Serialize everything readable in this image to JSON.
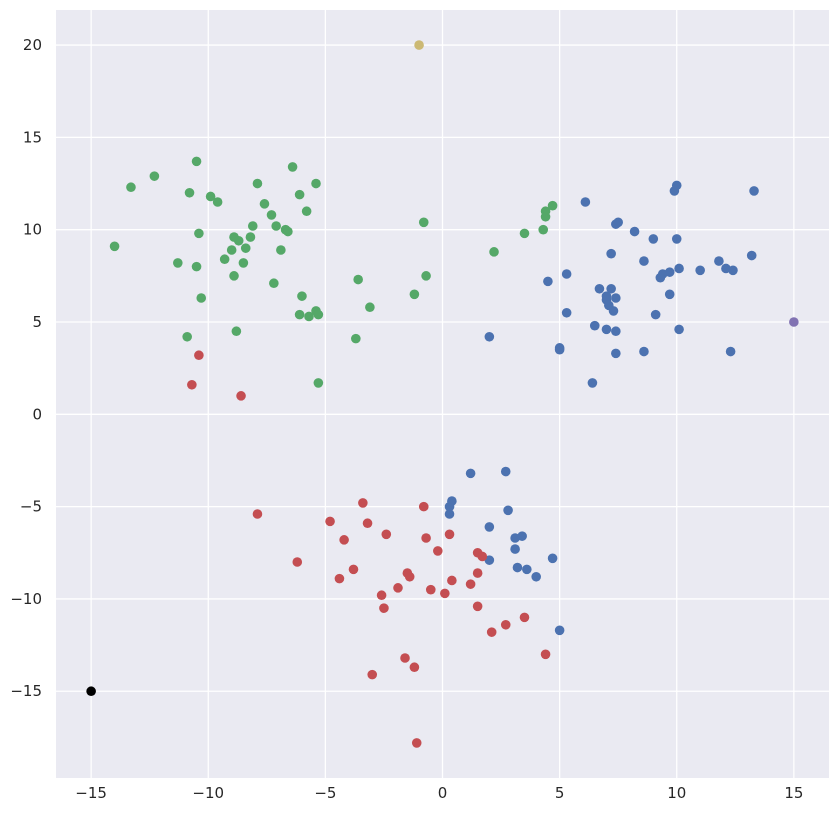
{
  "chart_data": {
    "type": "scatter",
    "title": "",
    "xlabel": "",
    "ylabel": "",
    "xlim": [
      -16.5,
      16.5
    ],
    "ylim": [
      -19.7,
      21.9
    ],
    "grid": true,
    "background_color": "#eaeaf2",
    "grid_color": "#ffffff",
    "x_ticks": [
      -15,
      -10,
      -5,
      0,
      5,
      10,
      15
    ],
    "x_tick_labels": [
      "−15",
      "−10",
      "−5",
      "0",
      "5",
      "10",
      "15"
    ],
    "y_ticks": [
      -15,
      -10,
      -5,
      0,
      5,
      10,
      15,
      20
    ],
    "y_tick_labels": [
      "−15",
      "−10",
      "−5",
      "0",
      "5",
      "10",
      "15",
      "20"
    ],
    "series": [
      {
        "color": "#55a868",
        "points": [
          [
            -14.0,
            9.1
          ],
          [
            -13.3,
            12.3
          ],
          [
            -12.3,
            12.9
          ],
          [
            -11.3,
            8.2
          ],
          [
            -10.9,
            4.2
          ],
          [
            -10.8,
            12.0
          ],
          [
            -10.5,
            13.7
          ],
          [
            -10.5,
            8.0
          ],
          [
            -10.4,
            9.8
          ],
          [
            -10.3,
            6.3
          ],
          [
            -9.9,
            11.8
          ],
          [
            -9.6,
            11.5
          ],
          [
            -9.3,
            8.4
          ],
          [
            -9.0,
            8.9
          ],
          [
            -8.9,
            9.6
          ],
          [
            -8.9,
            7.5
          ],
          [
            -8.8,
            4.5
          ],
          [
            -8.7,
            9.4
          ],
          [
            -8.5,
            8.2
          ],
          [
            -8.4,
            9.0
          ],
          [
            -8.2,
            9.6
          ],
          [
            -8.1,
            10.2
          ],
          [
            -7.9,
            12.5
          ],
          [
            -7.6,
            11.4
          ],
          [
            -7.3,
            10.8
          ],
          [
            -7.2,
            7.1
          ],
          [
            -7.1,
            10.2
          ],
          [
            -6.9,
            8.9
          ],
          [
            -6.7,
            10.0
          ],
          [
            -6.6,
            9.9
          ],
          [
            -6.4,
            13.4
          ],
          [
            -6.1,
            11.9
          ],
          [
            -6.1,
            5.4
          ],
          [
            -6.0,
            6.4
          ],
          [
            -5.8,
            11.0
          ],
          [
            -5.7,
            5.3
          ],
          [
            -5.4,
            5.6
          ],
          [
            -5.4,
            12.5
          ],
          [
            -5.3,
            5.4
          ],
          [
            -5.3,
            1.7
          ],
          [
            -3.7,
            4.1
          ],
          [
            -3.6,
            7.3
          ],
          [
            -3.1,
            5.8
          ],
          [
            -1.2,
            6.5
          ],
          [
            -0.8,
            10.4
          ],
          [
            -0.7,
            7.5
          ],
          [
            2.2,
            8.8
          ],
          [
            3.5,
            9.8
          ],
          [
            4.3,
            10.0
          ],
          [
            4.4,
            10.7
          ],
          [
            4.4,
            11.0
          ],
          [
            4.7,
            11.3
          ]
        ]
      },
      {
        "color": "#4c72b0",
        "points": [
          [
            2.0,
            4.2
          ],
          [
            4.5,
            7.2
          ],
          [
            5.0,
            3.6
          ],
          [
            5.0,
            3.5
          ],
          [
            5.3,
            7.6
          ],
          [
            5.3,
            5.5
          ],
          [
            6.1,
            11.5
          ],
          [
            6.4,
            1.7
          ],
          [
            6.5,
            4.8
          ],
          [
            6.7,
            6.8
          ],
          [
            7.0,
            6.2
          ],
          [
            7.0,
            6.4
          ],
          [
            7.0,
            4.6
          ],
          [
            7.1,
            5.9
          ],
          [
            7.2,
            6.8
          ],
          [
            7.2,
            8.7
          ],
          [
            7.3,
            5.6
          ],
          [
            7.4,
            10.3
          ],
          [
            7.4,
            6.3
          ],
          [
            7.4,
            3.3
          ],
          [
            7.4,
            4.5
          ],
          [
            7.5,
            10.4
          ],
          [
            8.2,
            9.9
          ],
          [
            8.6,
            8.3
          ],
          [
            8.6,
            3.4
          ],
          [
            9.0,
            9.5
          ],
          [
            9.1,
            5.4
          ],
          [
            9.3,
            7.4
          ],
          [
            9.4,
            7.6
          ],
          [
            9.7,
            6.5
          ],
          [
            9.7,
            7.7
          ],
          [
            9.9,
            12.1
          ],
          [
            10.0,
            12.4
          ],
          [
            10.0,
            9.5
          ],
          [
            10.1,
            7.9
          ],
          [
            10.1,
            4.6
          ],
          [
            11.0,
            7.8
          ],
          [
            11.8,
            8.3
          ],
          [
            12.1,
            7.9
          ],
          [
            12.3,
            3.4
          ],
          [
            12.4,
            7.8
          ],
          [
            13.2,
            8.6
          ],
          [
            13.3,
            12.1
          ],
          [
            1.2,
            -3.2
          ],
          [
            2.7,
            -3.1
          ],
          [
            0.4,
            -4.7
          ],
          [
            0.3,
            -5.0
          ],
          [
            0.3,
            -5.4
          ],
          [
            2.8,
            -5.2
          ],
          [
            2.0,
            -6.1
          ],
          [
            3.1,
            -6.7
          ],
          [
            3.4,
            -6.6
          ],
          [
            3.1,
            -7.3
          ],
          [
            2.0,
            -7.9
          ],
          [
            4.7,
            -7.8
          ],
          [
            3.2,
            -8.3
          ],
          [
            3.6,
            -8.4
          ],
          [
            4.0,
            -8.8
          ],
          [
            5.0,
            -11.7
          ]
        ]
      },
      {
        "color": "#c44e52",
        "points": [
          [
            -10.4,
            3.2
          ],
          [
            -10.7,
            1.6
          ],
          [
            -8.6,
            1.0
          ],
          [
            -7.9,
            -5.4
          ],
          [
            -4.8,
            -5.8
          ],
          [
            -3.4,
            -4.8
          ],
          [
            -3.2,
            -5.9
          ],
          [
            -4.2,
            -6.8
          ],
          [
            -2.4,
            -6.5
          ],
          [
            -0.8,
            -5.0
          ],
          [
            -0.7,
            -6.7
          ],
          [
            0.3,
            -6.5
          ],
          [
            -6.2,
            -8.0
          ],
          [
            -4.4,
            -8.9
          ],
          [
            -3.8,
            -8.4
          ],
          [
            -1.5,
            -8.6
          ],
          [
            -1.4,
            -8.8
          ],
          [
            -0.2,
            -7.4
          ],
          [
            1.5,
            -7.5
          ],
          [
            1.7,
            -7.7
          ],
          [
            1.5,
            -8.6
          ],
          [
            -2.6,
            -9.8
          ],
          [
            -2.5,
            -10.5
          ],
          [
            -1.9,
            -9.4
          ],
          [
            -0.5,
            -9.5
          ],
          [
            0.4,
            -9.0
          ],
          [
            1.2,
            -9.2
          ],
          [
            0.1,
            -9.7
          ],
          [
            1.5,
            -10.4
          ],
          [
            2.1,
            -11.8
          ],
          [
            2.7,
            -11.4
          ],
          [
            3.5,
            -11.0
          ],
          [
            4.4,
            -13.0
          ],
          [
            -1.6,
            -13.2
          ],
          [
            -1.2,
            -13.7
          ],
          [
            -3.0,
            -14.1
          ],
          [
            -1.1,
            -17.8
          ]
        ]
      },
      {
        "color": "#ccb974",
        "points": [
          [
            -1.0,
            20.0
          ]
        ]
      },
      {
        "color": "#8172b2",
        "points": [
          [
            15.0,
            5.0
          ]
        ]
      },
      {
        "color": "#000000",
        "points": [
          [
            -15.0,
            -15.0
          ]
        ]
      }
    ]
  }
}
